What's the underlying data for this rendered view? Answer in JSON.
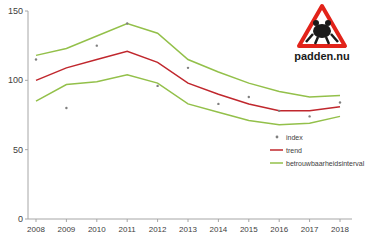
{
  "chart_data": {
    "type": "line",
    "annotation": "padden.nu",
    "categories": [
      "2008",
      "2009",
      "2010",
      "2011",
      "2012",
      "2013",
      "2014",
      "2015",
      "2016",
      "2017",
      "2018"
    ],
    "series": [
      {
        "name": "index",
        "type": "scatter",
        "marker": "dot",
        "color": "#7f7f7f",
        "values": [
          115,
          80,
          125,
          141,
          96,
          109,
          83,
          88,
          78,
          74,
          84
        ]
      },
      {
        "name": "trend",
        "type": "line",
        "color": "#c0272d",
        "values": [
          100,
          109,
          115,
          121,
          113,
          98,
          90,
          83,
          78,
          78,
          81
        ]
      },
      {
        "name": "betrouwbaarheidsinterval",
        "type": "band",
        "color": "#93c04a",
        "lower": [
          85,
          97,
          99,
          104,
          98,
          83,
          77,
          71,
          68,
          69,
          74
        ],
        "upper": [
          118,
          123,
          132,
          141,
          134,
          115,
          106,
          98,
          92,
          88,
          89
        ]
      }
    ],
    "ylim": [
      0,
      150
    ],
    "yticks": [
      0,
      50,
      100,
      150
    ],
    "grid": false,
    "legend": "right"
  }
}
